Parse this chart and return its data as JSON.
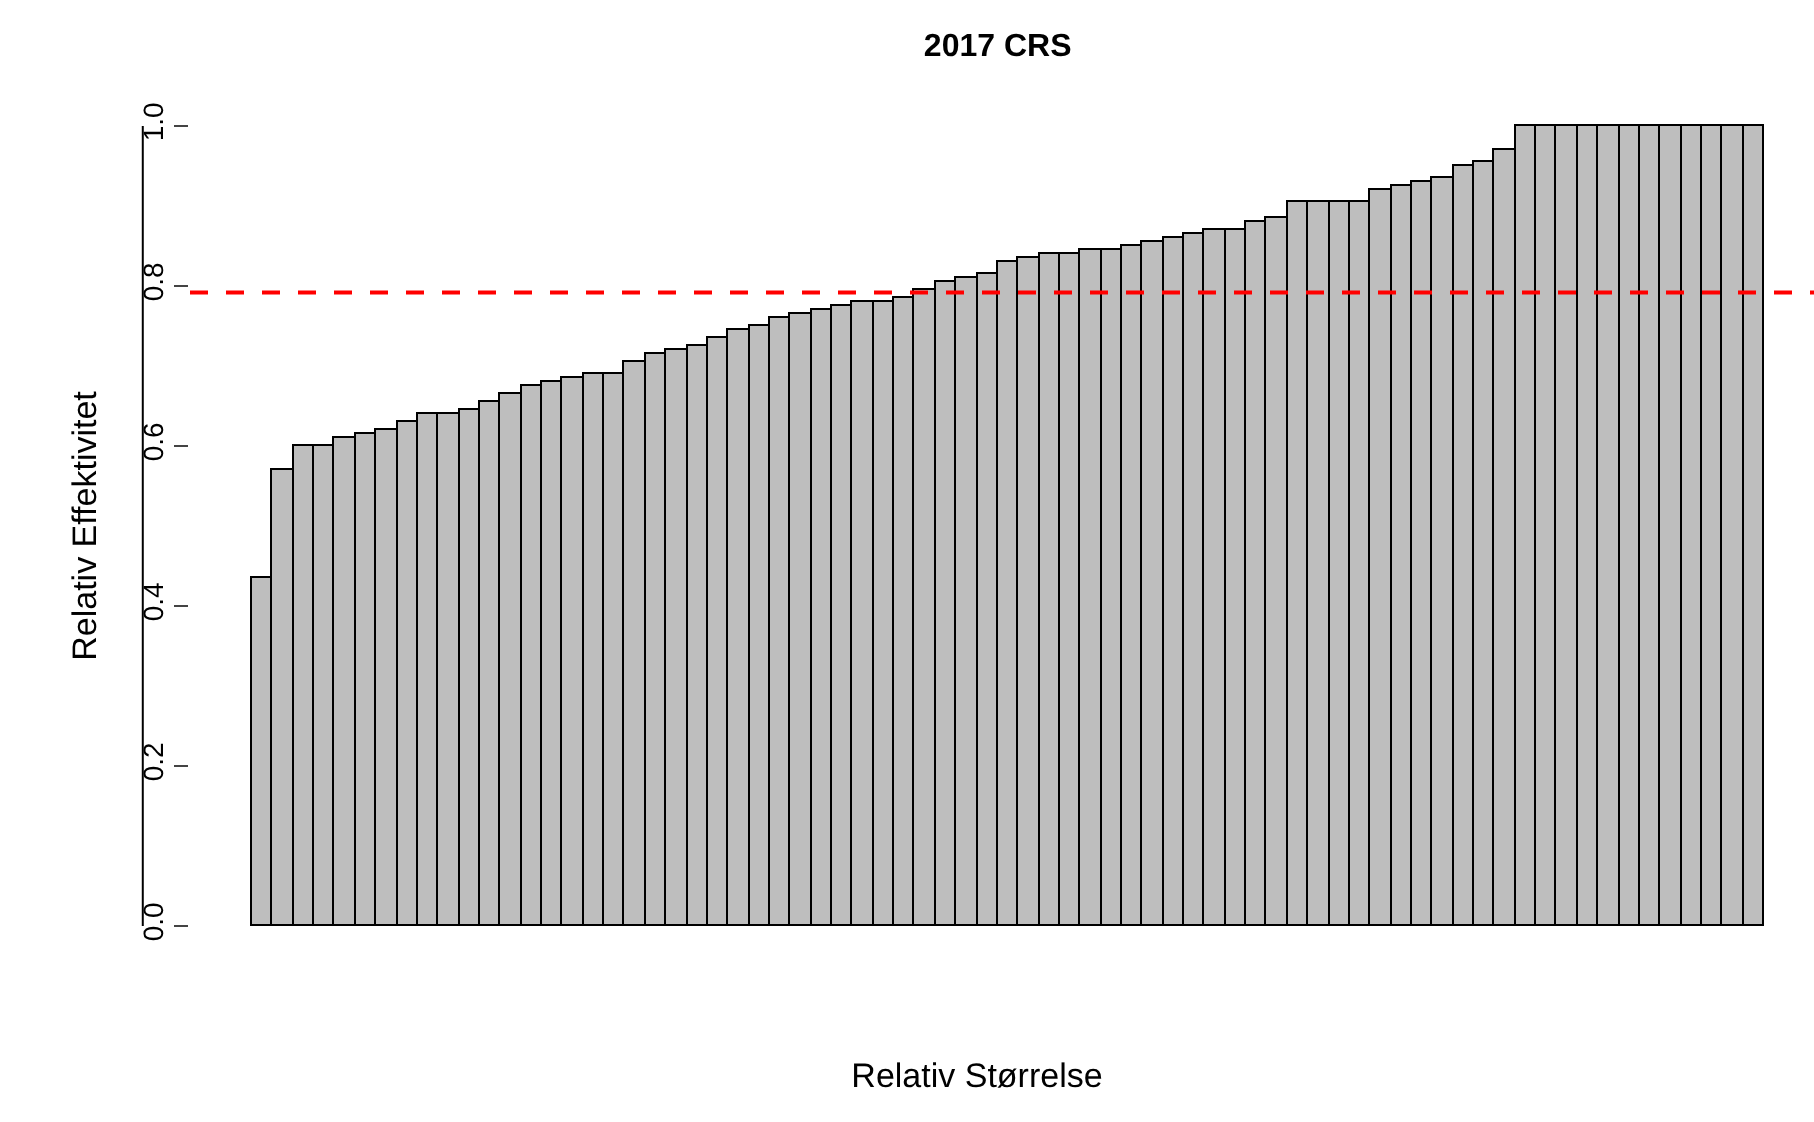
{
  "chart_data": {
    "type": "bar",
    "title": "2017 CRS",
    "xlabel": "Relativ Størrelse",
    "ylabel": "Relativ Effektivitet",
    "categories": [
      null,
      null,
      null,
      null,
      null,
      null,
      null,
      null,
      null,
      null,
      null,
      null,
      null,
      null,
      null,
      null,
      null,
      null,
      null,
      null,
      null,
      null,
      null,
      null,
      null,
      null,
      null,
      null,
      null,
      null,
      null,
      null,
      null,
      null,
      null,
      null,
      null,
      null,
      null,
      null,
      null,
      null,
      null,
      null,
      null,
      null,
      null,
      null,
      null,
      null,
      null,
      null,
      null,
      null,
      null,
      null,
      null,
      null,
      null,
      null,
      null,
      null,
      null,
      null,
      null,
      null,
      null,
      null,
      null,
      null,
      null,
      null,
      null
    ],
    "values": [
      0.435,
      0.57,
      0.6,
      0.6,
      0.61,
      0.615,
      0.62,
      0.63,
      0.64,
      0.64,
      0.645,
      0.655,
      0.665,
      0.675,
      0.68,
      0.685,
      0.69,
      0.69,
      0.705,
      0.715,
      0.72,
      0.725,
      0.735,
      0.745,
      0.75,
      0.76,
      0.765,
      0.77,
      0.775,
      0.78,
      0.78,
      0.785,
      0.795,
      0.805,
      0.81,
      0.815,
      0.83,
      0.835,
      0.84,
      0.84,
      0.845,
      0.845,
      0.85,
      0.855,
      0.86,
      0.865,
      0.87,
      0.87,
      0.88,
      0.885,
      0.905,
      0.905,
      0.905,
      0.905,
      0.92,
      0.925,
      0.93,
      0.935,
      0.95,
      0.955,
      0.97,
      1.0,
      1.0,
      1.0,
      1.0,
      1.0,
      1.0,
      1.0,
      1.0,
      1.0,
      1.0,
      1.0,
      1.0
    ],
    "color": "#bebebe",
    "ylim": [
      0,
      1
    ],
    "yticks": [
      {
        "value": 0,
        "label": "0.0"
      },
      0.2,
      0.4,
      0.6,
      0.8,
      {
        "value": 1,
        "label": "1.0"
      }
    ],
    "tick_labels": "y",
    "ref_lines": [
      {
        "axis": "y",
        "value": 0.792,
        "color": "#ff0000",
        "line_style": "dashed"
      }
    ]
  }
}
